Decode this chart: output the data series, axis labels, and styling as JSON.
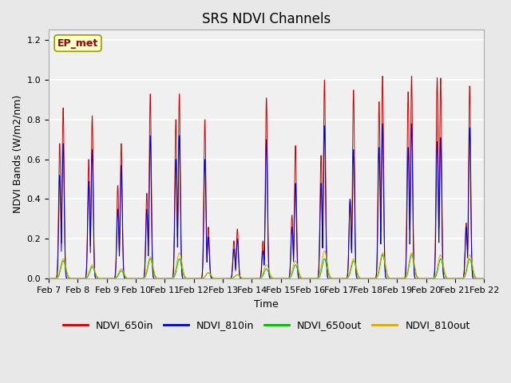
{
  "title": "SRS NDVI Channels",
  "ylabel": "NDVI Bands (W/m2/nm)",
  "xlabel": "Time",
  "annotation": "EP_met",
  "ylim": [
    0,
    1.25
  ],
  "yticks": [
    0.0,
    0.2,
    0.4,
    0.6,
    0.8,
    1.0,
    1.2
  ],
  "xtick_labels": [
    "Feb 7",
    "Feb 8",
    "Feb 9",
    "Feb 10",
    "Feb 11",
    "Feb 12",
    "Feb 13",
    "Feb 14",
    "Feb 15",
    "Feb 16",
    "Feb 17",
    "Feb 18",
    "Feb 19",
    "Feb 20",
    "Feb 21",
    "Feb 22"
  ],
  "colors": {
    "NDVI_650in": "#cc0000",
    "NDVI_810in": "#0000cc",
    "NDVI_650out": "#00bb00",
    "NDVI_810out": "#ddaa00"
  },
  "day_peaks": {
    "650in": [
      0.86,
      0.82,
      0.68,
      0.93,
      0.93,
      0.26,
      0.25,
      0.91,
      0.67,
      1.0,
      0.95,
      1.02,
      1.02,
      1.01,
      0.97
    ],
    "810in": [
      0.68,
      0.65,
      0.57,
      0.72,
      0.72,
      0.21,
      0.2,
      0.7,
      0.48,
      0.77,
      0.65,
      0.78,
      0.78,
      0.71,
      0.76
    ],
    "650out": [
      0.09,
      0.06,
      0.04,
      0.1,
      0.1,
      0.03,
      0.02,
      0.05,
      0.07,
      0.1,
      0.09,
      0.12,
      0.12,
      0.1,
      0.1
    ],
    "810out": [
      0.1,
      0.07,
      0.05,
      0.11,
      0.13,
      0.03,
      0.02,
      0.07,
      0.09,
      0.14,
      0.1,
      0.13,
      0.13,
      0.12,
      0.12
    ]
  },
  "sub_peaks_650in": [
    0.68,
    0.6,
    0.47,
    0.43,
    0.8,
    0.8,
    0.19,
    0.19,
    0.32,
    0.62,
    0.4,
    0.89,
    0.94,
    1.01,
    0.28
  ],
  "sub_peaks_810in": [
    0.52,
    0.49,
    0.35,
    0.35,
    0.6,
    0.6,
    0.15,
    0.14,
    0.26,
    0.48,
    0.4,
    0.66,
    0.66,
    0.69,
    0.26
  ],
  "background_color": "#e8e8e8",
  "plot_bg_color": "#f0f0f0",
  "grid_color": "#ffffff",
  "title_fontsize": 12,
  "label_fontsize": 9,
  "tick_fontsize": 8,
  "legend_fontsize": 9
}
